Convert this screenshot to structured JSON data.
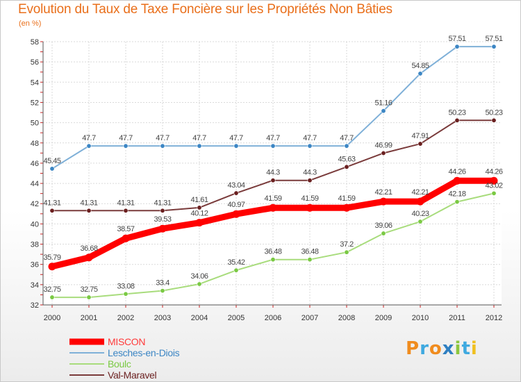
{
  "title": "Evolution du Taux de Taxe Foncière sur les Propriétés Non Bâties",
  "unit_label": "(en %)",
  "logo": {
    "text": "Proxiti",
    "colors": [
      "#f08c1e",
      "#3fa9e0",
      "#f08c1e",
      "#2e7fc1",
      "#8cc63f",
      "#3fa9e0",
      "#f0c020"
    ]
  },
  "chart_data": {
    "type": "line",
    "title": "Evolution du Taux de Taxe Foncière sur les Propriétés Non Bâties",
    "xlabel": "",
    "ylabel": "(en %)",
    "x": [
      "2000",
      "2001",
      "2002",
      "2003",
      "2004",
      "2005",
      "2006",
      "2007",
      "2008",
      "2009",
      "2010",
      "2011",
      "2012"
    ],
    "ylim": [
      32,
      58
    ],
    "yticks": [
      32,
      34,
      36,
      38,
      40,
      42,
      44,
      46,
      48,
      50,
      52,
      54,
      56,
      58
    ],
    "grid": true,
    "legend_position": "bottom-left",
    "series": [
      {
        "name": "Lesches-en-Diois",
        "color": "#7fb0d8",
        "marker": "#3c86c4",
        "values": [
          45.45,
          47.7,
          47.7,
          47.7,
          47.7,
          47.7,
          47.7,
          47.7,
          47.7,
          51.16,
          54.85,
          57.51,
          57.51
        ],
        "labels": [
          "45.45",
          "47.7",
          "47.7",
          "47.7",
          "47.7",
          "47.7",
          "47.7",
          "47.7",
          "47.7",
          "51.16",
          "54.85",
          "57.51",
          "57.51"
        ]
      },
      {
        "name": "Val-Maravel",
        "color": "#7a3b3b",
        "marker": "#6a1f1f",
        "values": [
          41.31,
          41.31,
          41.31,
          41.31,
          41.61,
          43.04,
          44.3,
          44.3,
          45.63,
          46.99,
          47.91,
          50.23,
          50.23
        ],
        "labels": [
          "41.31",
          "41.31",
          "41.31",
          "41.31",
          "41.61",
          "43.04",
          "44.3",
          "44.3",
          "45.63",
          "46.99",
          "47.91",
          "50.23",
          "50.23"
        ]
      },
      {
        "name": "Boulc",
        "color": "#a8dc7c",
        "marker": "#7ac943",
        "values": [
          32.75,
          32.75,
          33.08,
          33.4,
          34.06,
          35.42,
          36.48,
          36.48,
          37.2,
          39.06,
          40.23,
          42.18,
          43.02
        ],
        "labels": [
          "32.75",
          "32.75",
          "33.08",
          "33.4",
          "34.06",
          "35.42",
          "36.48",
          "36.48",
          "37.2",
          "39.06",
          "40.23",
          "42.18",
          "43.02"
        ]
      },
      {
        "name": "MISCON",
        "color": "#ff0000",
        "marker": "#ff0000",
        "values": [
          35.79,
          36.68,
          38.57,
          39.53,
          40.12,
          40.97,
          41.59,
          41.59,
          41.59,
          42.21,
          42.21,
          44.26,
          44.26
        ],
        "labels": [
          "35.79",
          "36.68",
          "38.57",
          "39.53",
          "40.12",
          "40.97",
          "41.59",
          "41.59",
          "41.59",
          "42.21",
          "42.21",
          "44.26",
          "44.26"
        ]
      }
    ],
    "legend": [
      {
        "name": "MISCON",
        "color": "#ff0000",
        "text_color": "#ff3a3a"
      },
      {
        "name": "Lesches-en-Diois",
        "color": "#7fb0d8",
        "text_color": "#3c86c4"
      },
      {
        "name": "Boulc",
        "color": "#a8dc7c",
        "text_color": "#7ac943"
      },
      {
        "name": "Val-Maravel",
        "color": "#7a3b3b",
        "text_color": "#6a1f1f"
      }
    ]
  }
}
